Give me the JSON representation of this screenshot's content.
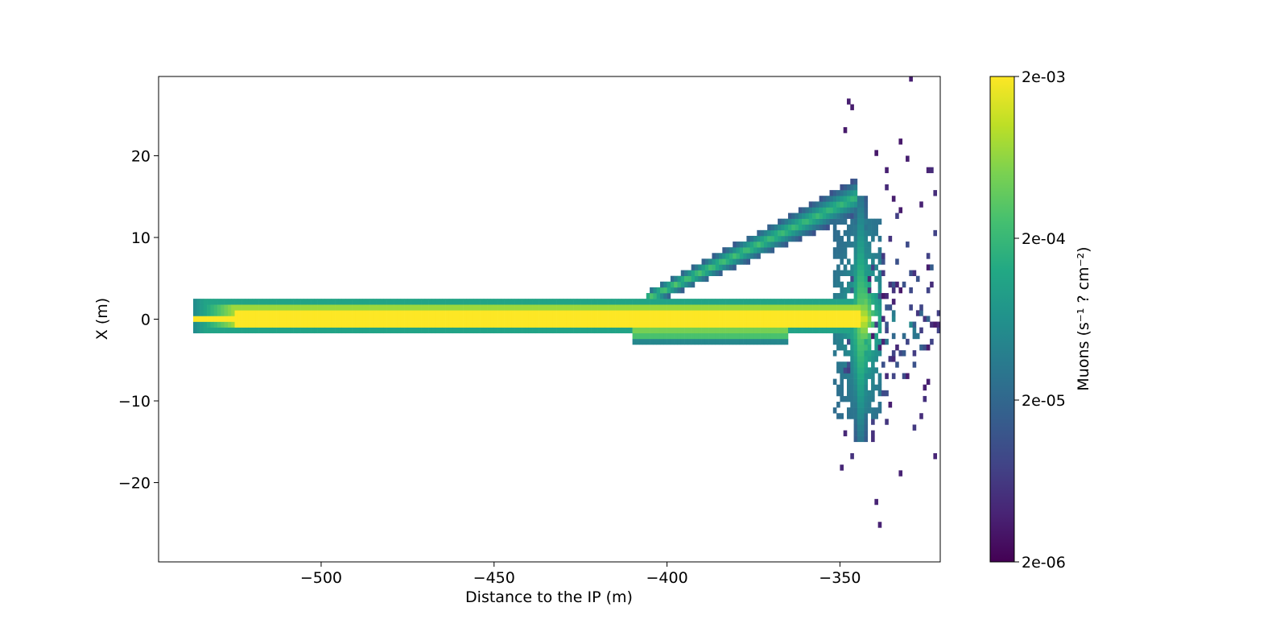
{
  "chart_data": {
    "type": "heatmap",
    "xlabel": "Distance to the IP (m)",
    "ylabel": "X (m)",
    "xlim": [
      -547,
      -321
    ],
    "ylim": [
      -29.7,
      29.7
    ],
    "xticks": [
      -500,
      -450,
      -400,
      -350
    ],
    "yticks": [
      -20,
      -10,
      0,
      10,
      20
    ],
    "xtick_labels": [
      "−500",
      "−450",
      "−400",
      "−350"
    ],
    "ytick_labels": [
      "−20",
      "−10",
      "0",
      "10",
      "20"
    ],
    "colorbar": {
      "label": "Muons (s⁻¹ ? cm⁻²)",
      "scale": "log",
      "range": [
        2e-06,
        0.002
      ],
      "tick_labels": [
        "2e-03",
        "2e-04",
        "2e-05",
        "2e-06"
      ],
      "colormap": "viridis"
    },
    "bins": {
      "x_width": 1.0,
      "y_width": 0.7
    },
    "features": [
      {
        "name": "central beam band",
        "x_range": [
          -537,
          -345
        ],
        "y_range": [
          -1.5,
          2.5
        ],
        "peak_value": 0.002
      },
      {
        "name": "diagonal upper band",
        "from": [
          -405,
          2.5
        ],
        "to": [
          -346,
          15
        ]
      },
      {
        "name": "vertical spread near wall",
        "x": -344,
        "y_range": [
          -15,
          15
        ]
      },
      {
        "name": "scatter tail",
        "x_range": [
          -350,
          -321
        ],
        "y_range": [
          -26,
          26
        ]
      }
    ]
  }
}
